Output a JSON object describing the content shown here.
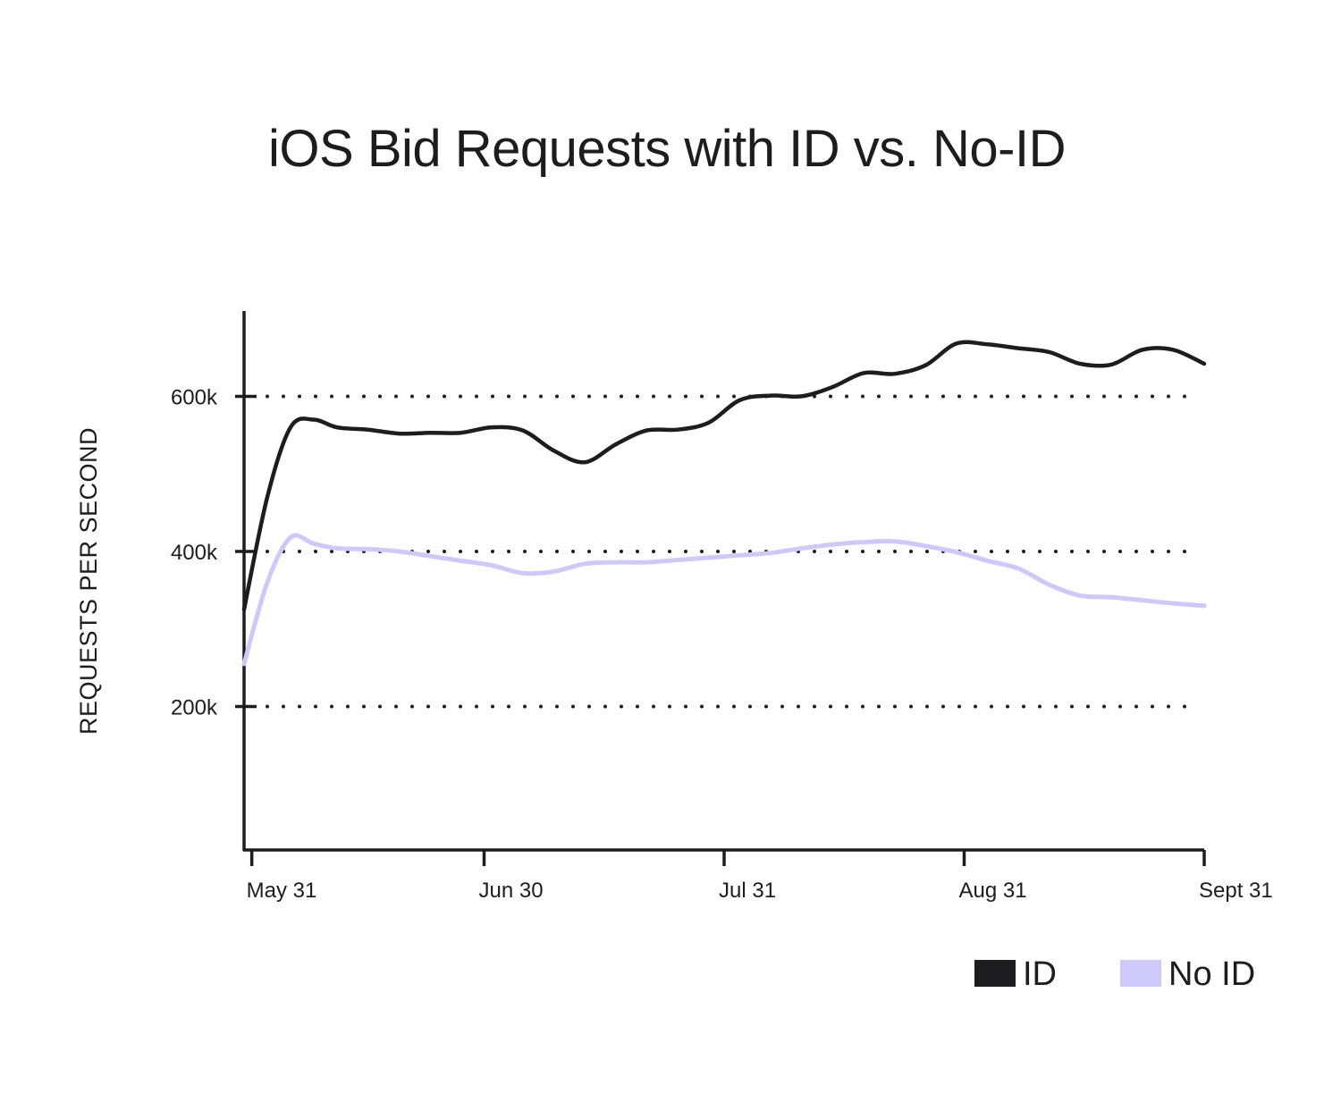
{
  "chart_data": {
    "type": "line",
    "title": "iOS Bid Requests with ID vs. No-ID",
    "xlabel": "",
    "ylabel": "REQUESTS PER SECOND",
    "x_ticks": [
      "May 31",
      "Jun 30",
      "Jul 31",
      "Aug 31",
      "Sept 31"
    ],
    "y_ticks": [
      {
        "label": "200k",
        "value": 200000
      },
      {
        "label": "400k",
        "value": 400000
      },
      {
        "label": "600k",
        "value": 600000
      }
    ],
    "ylim": [
      15000,
      710000
    ],
    "grid": "horizontal dotted",
    "legend_position": "bottom-right",
    "x": [
      "May 30",
      "Jun 2",
      "Jun 5",
      "Jun 8",
      "Jun 11",
      "Jun 15",
      "Jun 19",
      "Jun 23",
      "Jun 27",
      "Jul 1",
      "Jul 5",
      "Jul 9",
      "Jul 13",
      "Jul 17",
      "Jul 21",
      "Jul 25",
      "Jul 29",
      "Aug 2",
      "Aug 6",
      "Aug 10",
      "Aug 14",
      "Aug 18",
      "Aug 22",
      "Aug 26",
      "Aug 30",
      "Sep 3",
      "Sep 7",
      "Sep 11",
      "Sep 15",
      "Sep 19",
      "Sep 23",
      "Sep 27",
      "Oct 1"
    ],
    "series": [
      {
        "name": "ID",
        "color": "#1d1c1f",
        "values": [
          325000,
          470000,
          560000,
          570000,
          560000,
          557000,
          552000,
          553000,
          553000,
          560000,
          556000,
          530000,
          515000,
          538000,
          556000,
          557000,
          566000,
          595000,
          601000,
          600000,
          612000,
          630000,
          629000,
          640000,
          668000,
          667000,
          662000,
          657000,
          642000,
          641000,
          660000,
          660000,
          642000
        ]
      },
      {
        "name": "No ID",
        "color": "#cfc8fb",
        "values": [
          255000,
          360000,
          418000,
          410000,
          404000,
          403000,
          400000,
          394000,
          388000,
          382000,
          372000,
          374000,
          384000,
          386000,
          386000,
          389000,
          392000,
          395000,
          398000,
          404000,
          409000,
          412000,
          413000,
          407000,
          399000,
          388000,
          378000,
          357000,
          343000,
          341000,
          337000,
          333000,
          330000
        ]
      }
    ]
  }
}
